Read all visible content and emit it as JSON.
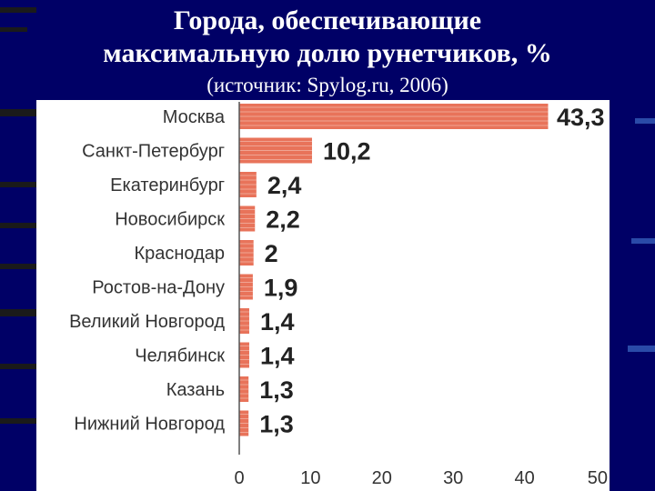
{
  "slide": {
    "title_line1": "Города, обеспечивающие",
    "title_line2": "максимальную долю рунетчиков, %",
    "source": "(источник: Spylog.ru, 2006)",
    "background_color": "#000066"
  },
  "chart_data": {
    "type": "bar",
    "orientation": "horizontal",
    "categories": [
      "Москва",
      "Санкт-Петербург",
      "Екатеринбург",
      "Новосибирск",
      "Краснодар",
      "Ростов-на-Дону",
      "Великий Новгород",
      "Челябинск",
      "Казань",
      "Нижний Новгород"
    ],
    "values": [
      43.3,
      10.2,
      2.4,
      2.2,
      2,
      1.9,
      1.4,
      1.4,
      1.3,
      1.3
    ],
    "value_labels": [
      "43,3",
      "10,2",
      "2,4",
      "2,2",
      "2",
      "1,9",
      "1,4",
      "1,4",
      "1,3",
      "1,3"
    ],
    "xlim": [
      0,
      50
    ],
    "x_ticks": [
      0,
      10,
      20,
      30,
      40,
      50
    ],
    "bar_color": "#e8735a",
    "grid": false
  }
}
